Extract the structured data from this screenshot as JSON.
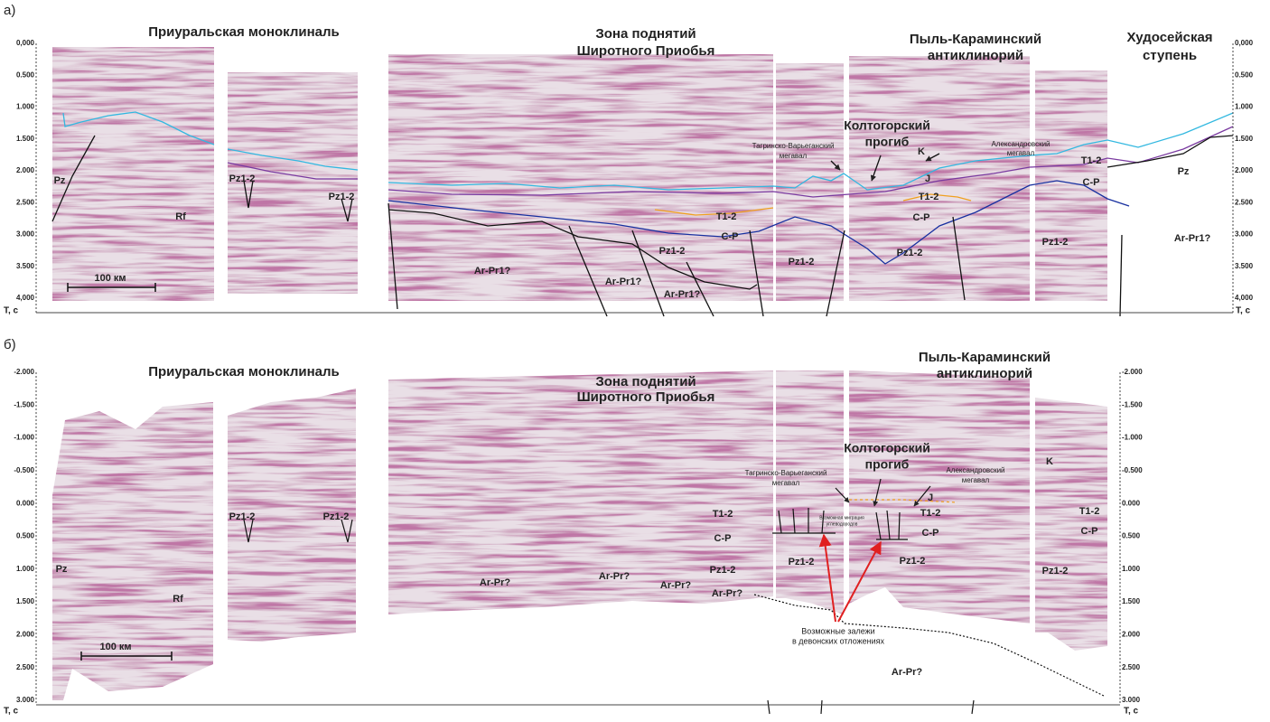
{
  "panel_a": {
    "label": "а)",
    "titles": [
      "Приуральская моноклиналь",
      "Зона поднятий",
      "Широтного Приобья",
      "Пыль-Караминский",
      "антиклинорий",
      "Худосейская",
      "ступень"
    ],
    "callouts": [
      "Колтогорский",
      "прогиб"
    ],
    "labels": [
      "Pz",
      "Rf",
      "Pz1-2",
      "Pz1-2",
      "100 км",
      "K",
      "J",
      "T1-2",
      "C-P",
      "Pz",
      "T1-2",
      "C-P",
      "T1-2",
      "C-P",
      "Pz1-2",
      "Pz1-2",
      "Pz1-2",
      "Pz1-2",
      "Ar-Pr1?",
      "Ar-Pr1?",
      "Ar-Pr1?",
      "Ar-Pr1?"
    ],
    "small_labels": [
      "Тагринско-Варьеганский",
      "мегавал",
      "Александровский",
      "мегавал"
    ],
    "ticks": [
      "0,000",
      "0.500",
      "1.000",
      "1.500",
      "2.000",
      "2.500",
      "3.000",
      "3.500",
      "4,000"
    ],
    "axis_unit": "T, с"
  },
  "panel_b": {
    "label": "б)",
    "titles": [
      "Приуральская моноклиналь",
      "Зона поднятий",
      "Широтного Приобья",
      "Пыль-Караминский",
      "антиклинорий"
    ],
    "callouts": [
      "Колтогорский",
      "прогиб"
    ],
    "labels": [
      "Pz1-2",
      "Pz1-2",
      "Pz",
      "Rf",
      "100 км",
      "K",
      "J",
      "T1-2",
      "C-P",
      "T1-2",
      "C-P",
      "T1-2",
      "C-P",
      "Ar-Pr?",
      "Ar-Pr?",
      "Ar-Pr?",
      "Pz1-2",
      "Ar-Pr?",
      "Pz1-2",
      "Pz1-2",
      "Pz1-2",
      "Ar-Pr?"
    ],
    "small_labels": [
      "Тагринско-Варьеганский",
      "мегавал",
      "Александровский",
      "мегавал",
      "Возможная миграция",
      "углеводородов",
      "Возможные залежи",
      "в девонских отложениях"
    ],
    "ticks": [
      "-2.000",
      "-1.500",
      "-1.000",
      "-0.500",
      "0.000",
      "0.500",
      "1.000",
      "1.500",
      "2.000",
      "2.500",
      "3.000"
    ],
    "axis_unit": "T, с"
  }
}
